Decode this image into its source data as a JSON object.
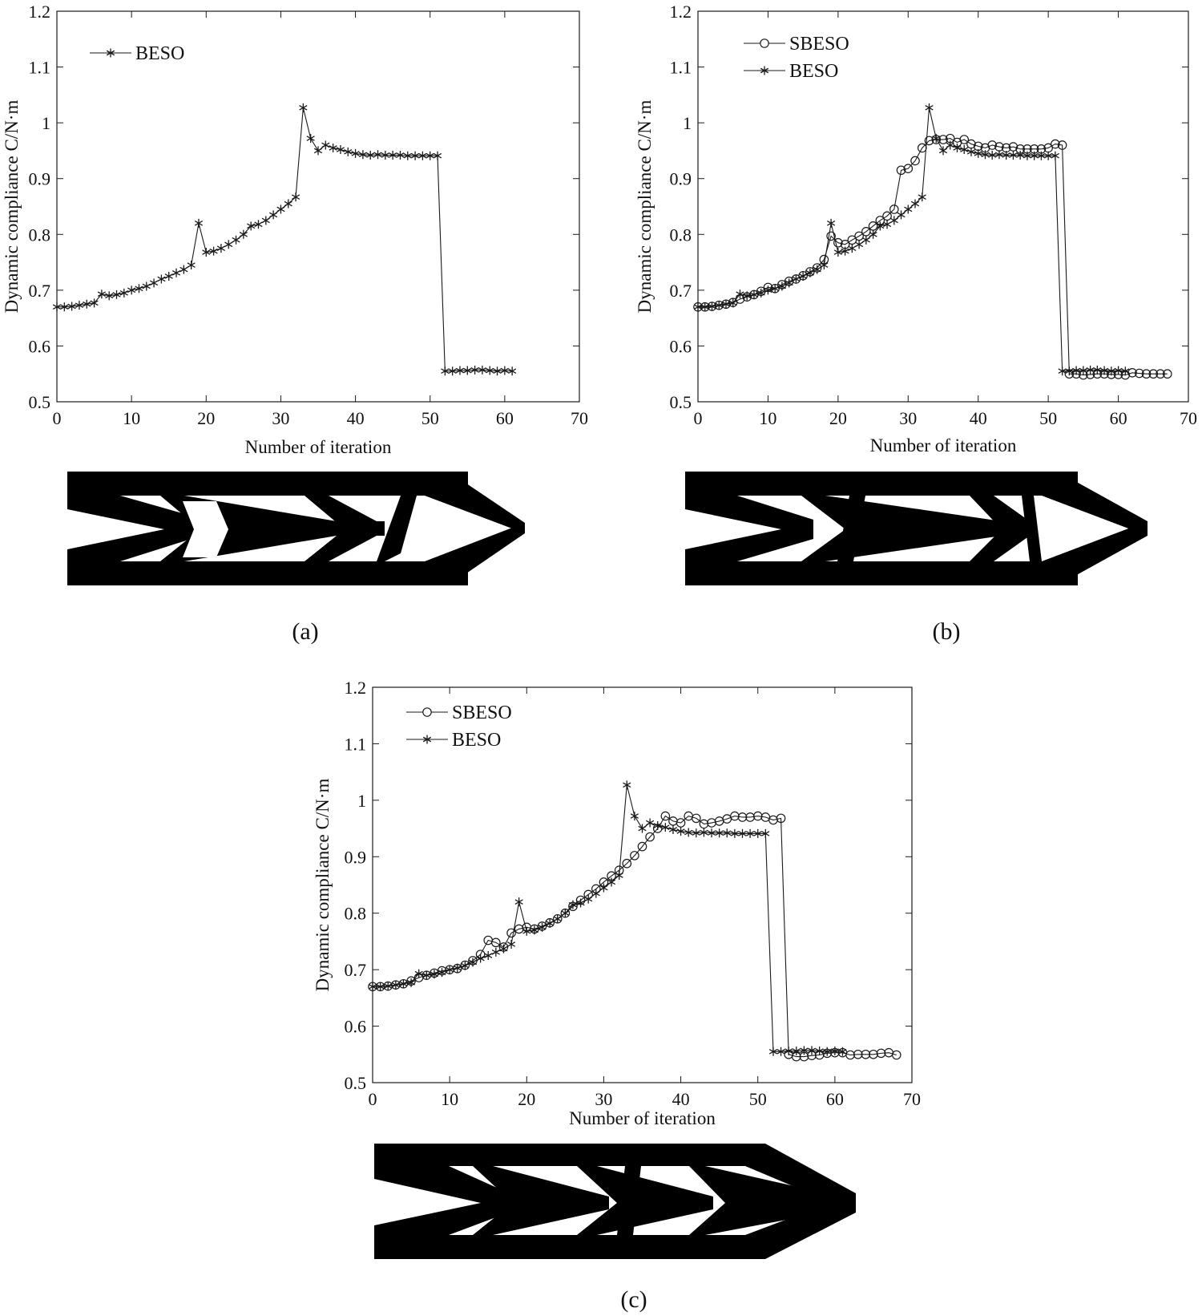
{
  "colors": {
    "line": "#1a1a1a",
    "structure": "#000000",
    "background": "#ffffff"
  },
  "panels": [
    {
      "caption": "(a)",
      "structure_icon": "topology-optimized-truss-structure-a"
    },
    {
      "caption": "(b)",
      "structure_icon": "topology-optimized-truss-structure-b"
    },
    {
      "caption": "(c)",
      "structure_icon": "topology-optimized-truss-structure-c"
    }
  ],
  "chart_data": [
    {
      "type": "line",
      "xlabel": "Number of iteration",
      "ylabel": "Dynamic compliance C/N·m",
      "xlim": [
        0,
        70
      ],
      "ylim": [
        0.5,
        1.2
      ],
      "xticks": [
        0,
        10,
        20,
        30,
        40,
        50,
        60,
        70
      ],
      "yticks": [
        0.5,
        0.6,
        0.7,
        0.8,
        0.9,
        1,
        1.1,
        1.2
      ],
      "ytick_labels": [
        "0.5",
        "0.6",
        "0.7",
        "0.8",
        "0.9",
        "1",
        "1.1",
        "1.2"
      ],
      "grid": false,
      "legend_position": "top-left",
      "series": [
        {
          "name": "BESO",
          "marker": "star",
          "x": [
            0,
            1,
            2,
            3,
            4,
            5,
            6,
            7,
            8,
            9,
            10,
            11,
            12,
            13,
            14,
            15,
            16,
            17,
            18,
            19,
            20,
            21,
            22,
            23,
            24,
            25,
            26,
            27,
            28,
            29,
            30,
            31,
            32,
            33,
            34,
            35,
            36,
            37,
            38,
            39,
            40,
            41,
            42,
            43,
            44,
            45,
            46,
            47,
            48,
            49,
            50,
            51,
            52,
            53,
            54,
            55,
            56,
            57,
            58,
            59,
            60,
            61
          ],
          "y": [
            0.67,
            0.67,
            0.671,
            0.673,
            0.675,
            0.677,
            0.693,
            0.69,
            0.692,
            0.695,
            0.7,
            0.703,
            0.707,
            0.713,
            0.72,
            0.725,
            0.731,
            0.737,
            0.745,
            0.82,
            0.768,
            0.77,
            0.775,
            0.782,
            0.79,
            0.8,
            0.815,
            0.818,
            0.825,
            0.835,
            0.845,
            0.855,
            0.867,
            1.027,
            0.972,
            0.95,
            0.96,
            0.955,
            0.952,
            0.948,
            0.945,
            0.943,
            0.942,
            0.943,
            0.942,
            0.942,
            0.942,
            0.941,
            0.941,
            0.941,
            0.941,
            0.941,
            0.555,
            0.555,
            0.556,
            0.556,
            0.557,
            0.557,
            0.556,
            0.555,
            0.556,
            0.555
          ]
        }
      ]
    },
    {
      "type": "line",
      "xlabel": "Number of iteration",
      "ylabel": "Dynamic compliance C/N·m",
      "xlim": [
        0,
        70
      ],
      "ylim": [
        0.5,
        1.2
      ],
      "xticks": [
        0,
        10,
        20,
        30,
        40,
        50,
        60,
        70
      ],
      "yticks": [
        0.5,
        0.6,
        0.7,
        0.8,
        0.9,
        1,
        1.1,
        1.2
      ],
      "ytick_labels": [
        "0.5",
        "0.6",
        "0.7",
        "0.8",
        "0.9",
        "1",
        "1.1",
        "1.2"
      ],
      "grid": false,
      "legend_position": "top-left",
      "series": [
        {
          "name": "SBESO",
          "marker": "circle",
          "x": [
            0,
            1,
            2,
            3,
            4,
            5,
            6,
            7,
            8,
            9,
            10,
            11,
            12,
            13,
            14,
            15,
            16,
            17,
            18,
            19,
            20,
            21,
            22,
            23,
            24,
            25,
            26,
            27,
            28,
            29,
            30,
            31,
            32,
            33,
            34,
            35,
            36,
            37,
            38,
            39,
            40,
            41,
            42,
            43,
            44,
            45,
            46,
            47,
            48,
            49,
            50,
            51,
            52,
            53,
            54,
            55,
            56,
            57,
            58,
            59,
            60,
            61,
            62,
            63,
            64,
            65,
            66,
            67
          ],
          "y": [
            0.67,
            0.67,
            0.671,
            0.673,
            0.675,
            0.678,
            0.684,
            0.688,
            0.692,
            0.698,
            0.705,
            0.703,
            0.71,
            0.716,
            0.72,
            0.726,
            0.733,
            0.74,
            0.755,
            0.797,
            0.785,
            0.782,
            0.79,
            0.797,
            0.805,
            0.815,
            0.825,
            0.833,
            0.845,
            0.915,
            0.918,
            0.932,
            0.955,
            0.968,
            0.97,
            0.97,
            0.972,
            0.965,
            0.97,
            0.962,
            0.958,
            0.955,
            0.96,
            0.957,
            0.955,
            0.957,
            0.953,
            0.953,
            0.953,
            0.953,
            0.955,
            0.962,
            0.96,
            0.55,
            0.55,
            0.548,
            0.549,
            0.55,
            0.55,
            0.549,
            0.549,
            0.548,
            0.552,
            0.551,
            0.55,
            0.55,
            0.55,
            0.55
          ]
        },
        {
          "name": "BESO",
          "marker": "star",
          "x": [
            0,
            1,
            2,
            3,
            4,
            5,
            6,
            7,
            8,
            9,
            10,
            11,
            12,
            13,
            14,
            15,
            16,
            17,
            18,
            19,
            20,
            21,
            22,
            23,
            24,
            25,
            26,
            27,
            28,
            29,
            30,
            31,
            32,
            33,
            34,
            35,
            36,
            37,
            38,
            39,
            40,
            41,
            42,
            43,
            44,
            45,
            46,
            47,
            48,
            49,
            50,
            51,
            52,
            53,
            54,
            55,
            56,
            57,
            58,
            59,
            60,
            61
          ],
          "y": [
            0.67,
            0.67,
            0.671,
            0.673,
            0.675,
            0.677,
            0.693,
            0.69,
            0.692,
            0.695,
            0.7,
            0.703,
            0.707,
            0.713,
            0.72,
            0.725,
            0.731,
            0.737,
            0.745,
            0.82,
            0.768,
            0.77,
            0.775,
            0.782,
            0.79,
            0.8,
            0.815,
            0.818,
            0.825,
            0.835,
            0.845,
            0.855,
            0.867,
            1.027,
            0.972,
            0.95,
            0.96,
            0.955,
            0.952,
            0.948,
            0.945,
            0.943,
            0.942,
            0.943,
            0.942,
            0.942,
            0.942,
            0.941,
            0.941,
            0.941,
            0.941,
            0.941,
            0.555,
            0.555,
            0.556,
            0.556,
            0.557,
            0.557,
            0.556,
            0.555,
            0.556,
            0.555
          ]
        }
      ]
    },
    {
      "type": "line",
      "xlabel": "Number of iteration",
      "ylabel": "Dynamic compliance C/N·m",
      "xlim": [
        0,
        70
      ],
      "ylim": [
        0.5,
        1.2
      ],
      "xticks": [
        0,
        10,
        20,
        30,
        40,
        50,
        60,
        70
      ],
      "yticks": [
        0.5,
        0.6,
        0.7,
        0.8,
        0.9,
        1,
        1.1,
        1.2
      ],
      "ytick_labels": [
        "0.5",
        "0.6",
        "0.7",
        "0.8",
        "0.9",
        "1",
        "1.1",
        "1.2"
      ],
      "grid": false,
      "legend_position": "top-left",
      "series": [
        {
          "name": "SBESO",
          "marker": "circle",
          "x": [
            0,
            1,
            2,
            3,
            4,
            5,
            6,
            7,
            8,
            9,
            10,
            11,
            12,
            13,
            14,
            15,
            16,
            17,
            18,
            19,
            20,
            21,
            22,
            23,
            24,
            25,
            26,
            27,
            28,
            29,
            30,
            31,
            32,
            33,
            34,
            35,
            36,
            37,
            38,
            39,
            40,
            41,
            42,
            43,
            44,
            45,
            46,
            47,
            48,
            49,
            50,
            51,
            52,
            53,
            54,
            55,
            56,
            57,
            58,
            59,
            60,
            61,
            62,
            63,
            64,
            65,
            66,
            67,
            68
          ],
          "y": [
            0.67,
            0.67,
            0.671,
            0.673,
            0.675,
            0.68,
            0.686,
            0.69,
            0.694,
            0.698,
            0.7,
            0.702,
            0.708,
            0.716,
            0.727,
            0.752,
            0.748,
            0.74,
            0.765,
            0.772,
            0.775,
            0.772,
            0.777,
            0.783,
            0.79,
            0.8,
            0.812,
            0.823,
            0.833,
            0.843,
            0.855,
            0.866,
            0.876,
            0.888,
            0.902,
            0.918,
            0.935,
            0.95,
            0.972,
            0.963,
            0.96,
            0.972,
            0.968,
            0.958,
            0.96,
            0.963,
            0.967,
            0.972,
            0.97,
            0.97,
            0.972,
            0.97,
            0.965,
            0.968,
            0.55,
            0.546,
            0.546,
            0.548,
            0.549,
            0.552,
            0.553,
            0.553,
            0.549,
            0.55,
            0.55,
            0.55,
            0.552,
            0.553,
            0.549
          ]
        },
        {
          "name": "BESO",
          "marker": "star",
          "x": [
            0,
            1,
            2,
            3,
            4,
            5,
            6,
            7,
            8,
            9,
            10,
            11,
            12,
            13,
            14,
            15,
            16,
            17,
            18,
            19,
            20,
            21,
            22,
            23,
            24,
            25,
            26,
            27,
            28,
            29,
            30,
            31,
            32,
            33,
            34,
            35,
            36,
            37,
            38,
            39,
            40,
            41,
            42,
            43,
            44,
            45,
            46,
            47,
            48,
            49,
            50,
            51,
            52,
            53,
            54,
            55,
            56,
            57,
            58,
            59,
            60,
            61
          ],
          "y": [
            0.67,
            0.67,
            0.671,
            0.673,
            0.675,
            0.677,
            0.693,
            0.69,
            0.692,
            0.695,
            0.7,
            0.703,
            0.707,
            0.713,
            0.72,
            0.725,
            0.731,
            0.737,
            0.745,
            0.82,
            0.768,
            0.77,
            0.775,
            0.782,
            0.79,
            0.8,
            0.815,
            0.818,
            0.825,
            0.835,
            0.845,
            0.855,
            0.867,
            1.027,
            0.972,
            0.95,
            0.96,
            0.955,
            0.952,
            0.948,
            0.945,
            0.943,
            0.942,
            0.943,
            0.942,
            0.942,
            0.942,
            0.941,
            0.941,
            0.941,
            0.941,
            0.941,
            0.555,
            0.555,
            0.556,
            0.556,
            0.557,
            0.557,
            0.556,
            0.555,
            0.556,
            0.555
          ]
        }
      ]
    }
  ]
}
